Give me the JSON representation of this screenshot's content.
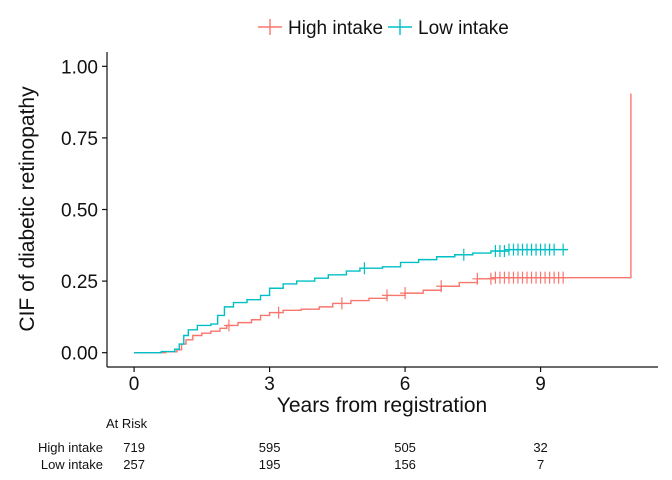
{
  "chart_data": {
    "type": "line",
    "subtype": "cumulative-incidence-step",
    "title": "",
    "xlabel": "Years from registration",
    "ylabel": "CIF of diabetic retinopathy",
    "xlim": [
      -0.6,
      11.6
    ],
    "ylim": [
      -0.05,
      1.05
    ],
    "x_ticks": [
      0,
      3,
      6,
      9
    ],
    "x_tick_labels": [
      "0",
      "3",
      "6",
      "9"
    ],
    "y_ticks": [
      0,
      0.25,
      0.5,
      0.75,
      1.0
    ],
    "y_tick_labels": [
      "0.00",
      "0.25",
      "0.50",
      "0.75",
      "1.00"
    ],
    "grid": false,
    "legend": {
      "placement": "top",
      "entries": [
        "High intake",
        "Low intake"
      ]
    },
    "series": [
      {
        "name": "High intake",
        "color": "#F8766D",
        "steps": [
          [
            0,
            0
          ],
          [
            0.7,
            0.003
          ],
          [
            0.95,
            0.01
          ],
          [
            1.05,
            0.03
          ],
          [
            1.15,
            0.045
          ],
          [
            1.3,
            0.06
          ],
          [
            1.5,
            0.068
          ],
          [
            1.7,
            0.075
          ],
          [
            1.9,
            0.085
          ],
          [
            2.05,
            0.095
          ],
          [
            2.3,
            0.105
          ],
          [
            2.6,
            0.115
          ],
          [
            2.8,
            0.13
          ],
          [
            3.0,
            0.14
          ],
          [
            3.3,
            0.148
          ],
          [
            3.7,
            0.152
          ],
          [
            4.1,
            0.16
          ],
          [
            4.4,
            0.172
          ],
          [
            4.8,
            0.182
          ],
          [
            5.2,
            0.19
          ],
          [
            5.6,
            0.2
          ],
          [
            6.0,
            0.208
          ],
          [
            6.4,
            0.218
          ],
          [
            6.8,
            0.232
          ],
          [
            7.2,
            0.245
          ],
          [
            7.6,
            0.258
          ],
          [
            8.0,
            0.262
          ],
          [
            11.0,
            0.262
          ],
          [
            11.0,
            0.905
          ]
        ],
        "censor_x": [
          2.1,
          3.2,
          4.6,
          5.6,
          6.0,
          6.8,
          7.6,
          7.9,
          8.0,
          8.1,
          8.2,
          8.3,
          8.4,
          8.5,
          8.6,
          8.7,
          8.8,
          8.9,
          9.0,
          9.1,
          9.2,
          9.3,
          9.4,
          9.5
        ]
      },
      {
        "name": "Low intake",
        "color": "#00BFC4",
        "steps": [
          [
            0,
            0
          ],
          [
            0.6,
            0.004
          ],
          [
            0.9,
            0.012
          ],
          [
            1.0,
            0.03
          ],
          [
            1.1,
            0.06
          ],
          [
            1.2,
            0.08
          ],
          [
            1.4,
            0.095
          ],
          [
            1.7,
            0.1
          ],
          [
            1.85,
            0.13
          ],
          [
            2.0,
            0.16
          ],
          [
            2.2,
            0.175
          ],
          [
            2.5,
            0.185
          ],
          [
            2.8,
            0.2
          ],
          [
            3.0,
            0.225
          ],
          [
            3.3,
            0.24
          ],
          [
            3.6,
            0.25
          ],
          [
            4.0,
            0.26
          ],
          [
            4.3,
            0.272
          ],
          [
            4.7,
            0.285
          ],
          [
            5.0,
            0.295
          ],
          [
            5.5,
            0.3
          ],
          [
            5.9,
            0.315
          ],
          [
            6.3,
            0.325
          ],
          [
            6.7,
            0.335
          ],
          [
            7.1,
            0.342
          ],
          [
            7.5,
            0.348
          ],
          [
            7.9,
            0.355
          ],
          [
            8.3,
            0.36
          ],
          [
            9.6,
            0.36
          ]
        ],
        "censor_x": [
          5.1,
          7.3,
          8.0,
          8.1,
          8.2,
          8.3,
          8.4,
          8.5,
          8.6,
          8.7,
          8.8,
          8.9,
          9.0,
          9.1,
          9.2,
          9.3,
          9.5
        ]
      }
    ],
    "at_risk": {
      "title": "At Risk",
      "times": [
        0,
        3,
        6,
        9
      ],
      "rows": [
        {
          "label": "High intake",
          "counts": [
            "719",
            "595",
            "505",
            "32"
          ]
        },
        {
          "label": "Low intake",
          "counts": [
            "257",
            "195",
            "156",
            "7"
          ]
        }
      ]
    }
  }
}
